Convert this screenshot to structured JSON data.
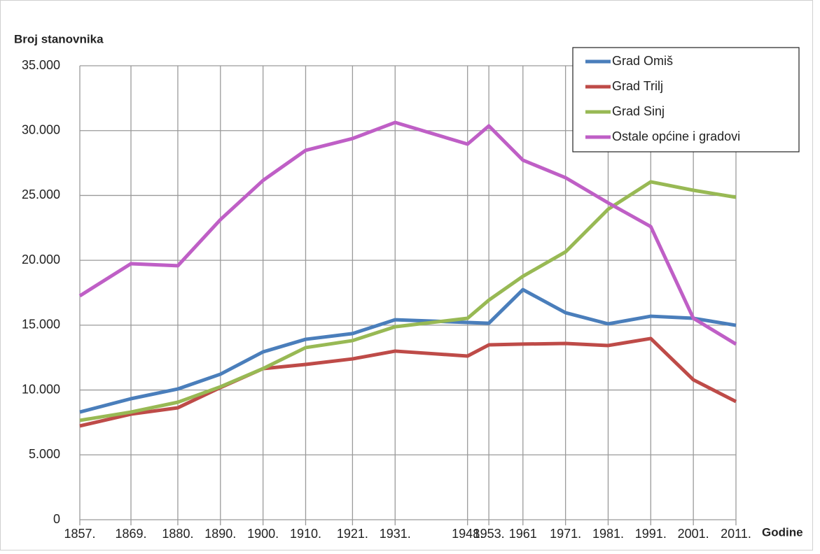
{
  "chart_data": {
    "type": "line",
    "y_label": "Broj stanovnika",
    "x_label": "Godine",
    "x": [
      1857,
      1869,
      1880,
      1890,
      1900,
      1910,
      1921,
      1931,
      1948,
      1953,
      1961,
      1971,
      1981,
      1991,
      2001,
      2011
    ],
    "xlim": [
      1857,
      2011
    ],
    "xticks": [
      {
        "value": 1857,
        "label": "1857."
      },
      {
        "value": 1869,
        "label": "1869."
      },
      {
        "value": 1880,
        "label": "1880."
      },
      {
        "value": 1890,
        "label": "1890."
      },
      {
        "value": 1900,
        "label": "1900."
      },
      {
        "value": 1910,
        "label": "1910."
      },
      {
        "value": 1921,
        "label": "1921."
      },
      {
        "value": 1931,
        "label": "1931."
      },
      {
        "value": 1948,
        "label": "1948."
      },
      {
        "value": 1953,
        "label": "1953."
      },
      1961,
      {
        "value": 1971,
        "label": "1971."
      },
      {
        "value": 1981,
        "label": "1981."
      },
      {
        "value": 1991,
        "label": "1991."
      },
      {
        "value": 2001,
        "label": "2001."
      },
      {
        "value": 2011,
        "label": "2011."
      }
    ],
    "ylim": [
      0,
      35000
    ],
    "yticks": [
      0,
      {
        "value": 5000,
        "label": "5.000"
      },
      {
        "value": 10000,
        "label": "10.000"
      },
      {
        "value": 15000,
        "label": "15.000"
      },
      {
        "value": 20000,
        "label": "20.000"
      },
      {
        "value": 25000,
        "label": "25.000"
      },
      {
        "value": 30000,
        "label": "30.000"
      },
      {
        "value": 35000,
        "label": "35.000"
      }
    ],
    "grid": true,
    "legend": "upper-right",
    "series": [
      {
        "name": "Grad Omiš",
        "color": "#4a7ebb",
        "values": [
          8300,
          9330,
          10080,
          11220,
          12940,
          13910,
          14350,
          15420,
          15210,
          15150,
          17740,
          15960,
          15100,
          15690,
          15530,
          14990
        ]
      },
      {
        "name": "Grad Trilj",
        "color": "#be4b48",
        "values": [
          7230,
          8140,
          8630,
          10190,
          11650,
          11970,
          12400,
          13000,
          12620,
          13480,
          13540,
          13590,
          13430,
          13970,
          10790,
          9110
        ]
      },
      {
        "name": "Grad Sinj",
        "color": "#98b954",
        "values": [
          7660,
          8300,
          9060,
          10250,
          11650,
          13270,
          13810,
          14880,
          15530,
          16930,
          18770,
          20650,
          23940,
          26050,
          25400,
          24860
        ]
      },
      {
        "name": "Ostale općine i gradovi",
        "color": "#bf5fc6",
        "values": [
          17260,
          19740,
          19580,
          23140,
          26160,
          28480,
          29390,
          30630,
          28960,
          30360,
          27720,
          26370,
          24430,
          22600,
          15530,
          13540
        ]
      }
    ]
  }
}
